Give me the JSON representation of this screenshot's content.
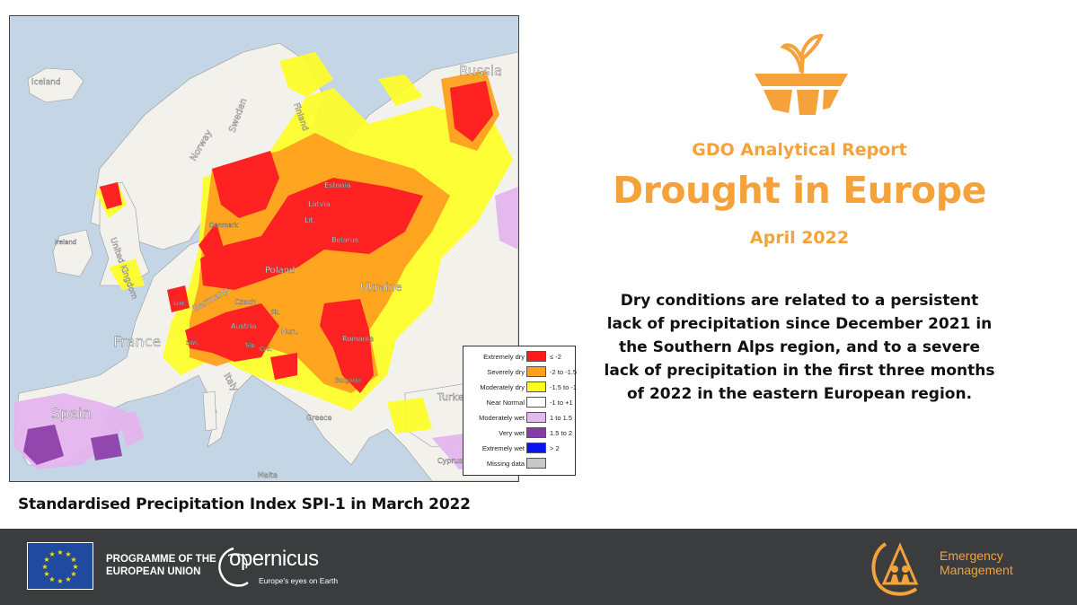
{
  "map": {
    "country_labels": [
      "Iceland",
      "Russia",
      "Finland",
      "Sweden",
      "Norway",
      "Estonia",
      "Latvia",
      "Lit.",
      "Belarus",
      "Denmark",
      "Ireland",
      "United Kingdom",
      "Poland",
      "Germany",
      "Lux.",
      "Czech",
      "Austria",
      "Sk.",
      "Hun.",
      "Slo",
      "Cro.",
      "Swi.",
      "France",
      "Ukraine",
      "Romania",
      "Italy",
      "Spain",
      "Greece",
      "Turkey",
      "Cyprus",
      "Malta",
      "Bulgaria"
    ],
    "legend": [
      {
        "label": "Extremely dry",
        "range": "≤ -2",
        "color": "#ff1a1a"
      },
      {
        "label": "Severely dry",
        "range": "-2 to -1.5",
        "color": "#ff9f1a"
      },
      {
        "label": "Moderately dry",
        "range": "-1.5 to -1",
        "color": "#ffff1a"
      },
      {
        "label": "Near Normal",
        "range": "-1 to +1",
        "color": "#ffffff"
      },
      {
        "label": "Moderately wet",
        "range": "1 to 1.5",
        "color": "#e6b8f0"
      },
      {
        "label": "Very wet",
        "range": "1.5 to 2",
        "color": "#8a3aa8"
      },
      {
        "label": "Extremely wet",
        "range": "> 2",
        "color": "#0b14f0"
      },
      {
        "label": "Missing data",
        "range": "",
        "color": "#c8c8c8"
      }
    ],
    "caption": "Standardised Precipitation Index SPI-1 in March 2022"
  },
  "report": {
    "subtitle": "GDO Analytical Report",
    "title": "Drought in Europe",
    "date": "April 2022",
    "body_lines": [
      "Dry conditions are related to a persistent",
      "lack of precipitation since December 2021 in",
      "the Southern Alps region, and to a severe",
      "lack of precipitation in the first three months",
      "of 2022 in the eastern European region."
    ]
  },
  "footer": {
    "programme_line1": "PROGRAMME OF THE",
    "programme_line2": "EUROPEAN UNION",
    "copernicus_name": "opernicus",
    "copernicus_tagline": "Europe's eyes on Earth",
    "em_line1": "Emergency",
    "em_line2": "Management"
  },
  "colors": {
    "accent": "#f5a23a",
    "footer_bg": "#3a3c3e",
    "eu_blue": "#1f4aa0",
    "eu_star": "#ffdd00"
  }
}
